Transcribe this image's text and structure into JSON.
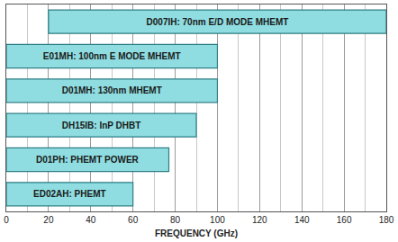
{
  "chart_data": {
    "type": "bar",
    "orientation": "horizontal",
    "categories": [
      "D007IH: 70nm E/D MODE MHEMT",
      "E01MH: 100nm E MODE MHEMT",
      "D01MH: 130nm MHEMT",
      "DH15IB: InP DHBT",
      "D01PH: PHEMT POWER",
      "ED02AH: PHEMT"
    ],
    "start": [
      20,
      0,
      0,
      0,
      0,
      0
    ],
    "end": [
      180,
      100,
      100,
      90,
      77,
      60
    ],
    "color": "#8fdde0",
    "x_label": "FREQUENCY (GHz)",
    "xlim": [
      0,
      180
    ],
    "xticks": [
      0,
      20,
      40,
      60,
      80,
      100,
      120,
      140,
      160,
      180
    ],
    "grid": true,
    "data_labels": true,
    "tick_labels": "x"
  }
}
